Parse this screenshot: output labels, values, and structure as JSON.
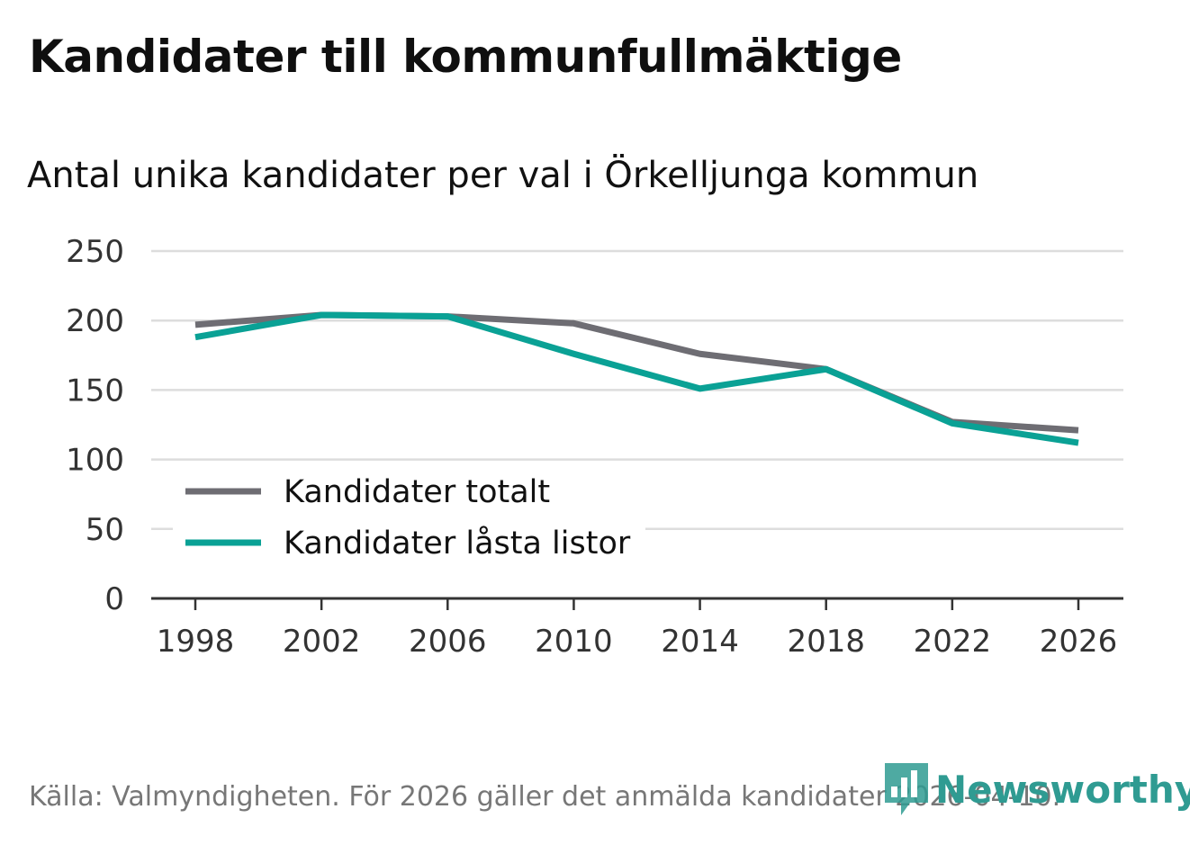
{
  "chart_data": {
    "type": "line",
    "title": "Kandidater till kommunfullmäktige",
    "subtitle": "Antal unika kandidater per val i Örkelljunga kommun",
    "categories": [
      "1998",
      "2002",
      "2006",
      "2010",
      "2014",
      "2018",
      "2022",
      "2026"
    ],
    "yticks": [
      "0",
      "50",
      "100",
      "150",
      "200",
      "250"
    ],
    "ylim": [
      0,
      250
    ],
    "grid": true,
    "legend_position": "bottom-left",
    "series": [
      {
        "name": "Kandidater totalt",
        "color": "#6e6d73",
        "values": [
          197,
          204,
          203,
          198,
          176,
          165,
          127,
          121
        ]
      },
      {
        "name": "Kandidater låsta listor",
        "color": "#0aa195",
        "values": [
          188,
          204,
          203,
          176,
          151,
          165,
          126,
          112
        ]
      }
    ]
  },
  "footer": {
    "source": "Källa: Valmyndigheten. För 2026 gäller det anmälda kandidater 2026-04-10.",
    "brand": "Newsworthy",
    "brand_icon": "bar-chart-speech-icon"
  },
  "colors": {
    "grid": "#dddddd",
    "axis": "#333333",
    "brand": "#2f9b92"
  }
}
